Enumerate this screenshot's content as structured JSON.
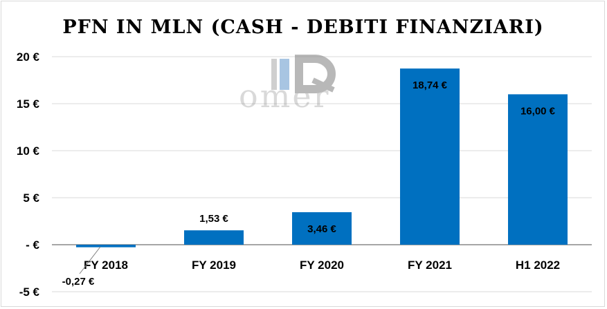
{
  "chart_data": {
    "type": "bar",
    "title": "PFN IN MLN (CASH - DEBITI FINANZIARI)",
    "categories": [
      "FY 2018",
      "FY 2019",
      "FY 2020",
      "FY 2021",
      "H1 2022"
    ],
    "values": [
      -0.27,
      1.53,
      3.46,
      18.74,
      16.0
    ],
    "data_labels": [
      "-0,27 €",
      "1,53 €",
      "3,46 €",
      "18,74 €",
      "16,00 €"
    ],
    "ylim": [
      -5,
      20
    ],
    "yticks": [
      {
        "value": 20,
        "label": "20 €"
      },
      {
        "value": 15,
        "label": "15 €"
      },
      {
        "value": 10,
        "label": "10 €"
      },
      {
        "value": 5,
        "label": "5 €"
      },
      {
        "value": 0,
        "label": "- €"
      },
      {
        "value": -5,
        "label": "-5 €"
      }
    ],
    "grid": true,
    "bar_color": "#0070c0"
  },
  "watermark": {
    "text": "omer"
  }
}
